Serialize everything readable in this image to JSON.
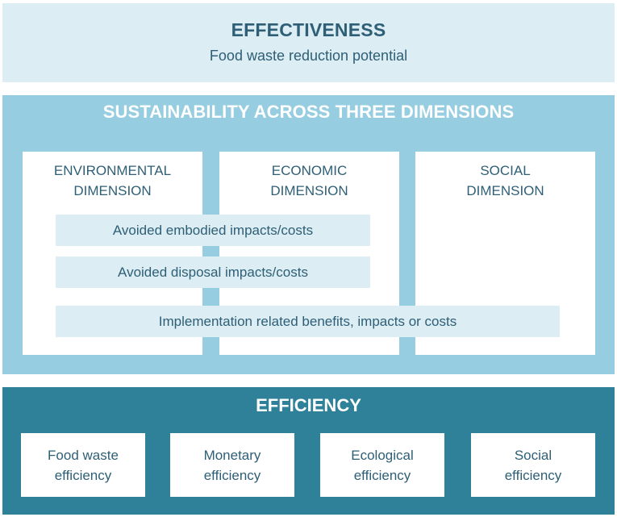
{
  "effectiveness": {
    "title": "EFFECTIVENESS",
    "subtitle": "Food waste reduction potential"
  },
  "sustainability": {
    "title": "SUSTAINABILITY ACROSS THREE DIMENSIONS",
    "dimensions": [
      {
        "line1": "ENVIRONMENTAL",
        "line2": "DIMENSION"
      },
      {
        "line1": "ECONOMIC",
        "line2": "DIMENSION"
      },
      {
        "line1": "SOCIAL",
        "line2": "DIMENSION"
      }
    ],
    "bars": {
      "embodied": "Avoided embodied impacts/costs",
      "disposal": "Avoided disposal impacts/costs",
      "implementation": "Implementation related benefits, impacts or costs"
    }
  },
  "efficiency": {
    "title": "EFFICIENCY",
    "items": [
      {
        "line1": "Food waste",
        "line2": "efficiency"
      },
      {
        "line1": "Monetary",
        "line2": "efficiency"
      },
      {
        "line1": "Ecological",
        "line2": "efficiency"
      },
      {
        "line1": "Social",
        "line2": "efficiency"
      }
    ]
  }
}
